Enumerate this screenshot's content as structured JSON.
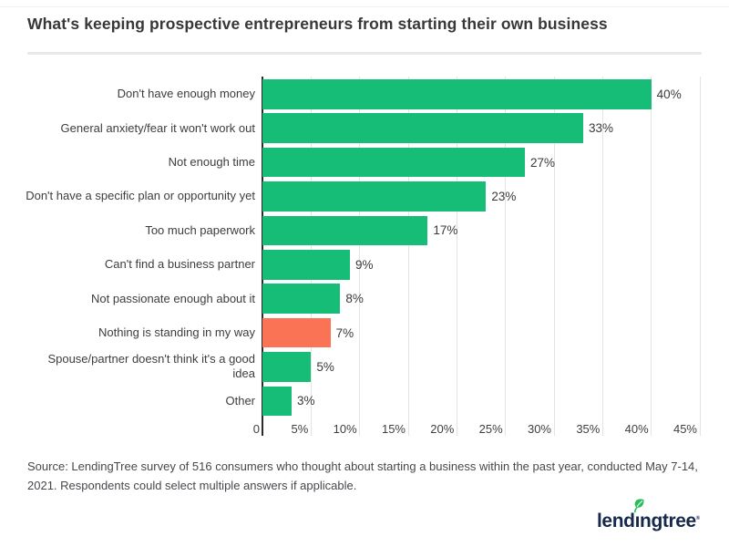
{
  "title": "What's keeping prospective entrepreneurs from starting their own business",
  "chart_data": {
    "type": "bar",
    "orientation": "horizontal",
    "title": "What's keeping prospective entrepreneurs from starting their own business",
    "categories": [
      "Don't have enough money",
      "General anxiety/fear it won't work out",
      "Not enough time",
      "Don't have a specific plan or opportunity yet",
      "Too much paperwork",
      "Can't find a business partner",
      "Not passionate enough about it",
      "Nothing is standing in my way",
      "Spouse/partner doesn't think it's a good\nidea",
      "Other"
    ],
    "values": [
      40,
      33,
      27,
      23,
      17,
      9,
      8,
      7,
      5,
      3
    ],
    "value_labels": [
      "40%",
      "33%",
      "27%",
      "23%",
      "17%",
      "9%",
      "8%",
      "7%",
      "5%",
      "3%"
    ],
    "highlight_index": 7,
    "colors": {
      "bar": "#15bd77",
      "highlight": "#fa7355",
      "axis": "#2b2b2b",
      "gridline": "#e4e4e4"
    },
    "x_axis": {
      "ticks": [
        0,
        5,
        10,
        15,
        20,
        25,
        30,
        35,
        40,
        45
      ],
      "tick_labels": [
        "0",
        "5%",
        "10%",
        "15%",
        "20%",
        "25%",
        "30%",
        "35%",
        "40%",
        "45%"
      ],
      "max": 45
    },
    "grid": true,
    "legend": false,
    "xlabel": "",
    "ylabel": ""
  },
  "source": {
    "text": "Source: LendingTree survey of 516 consumers who thought about starting a business within the past year, conducted May 7-14, 2021. Respondents could select multiple answers if applicable."
  },
  "brand": {
    "name": "lendingtree",
    "word_pre": "lend",
    "word_i": "ı",
    "word_post": "ngtree",
    "trademark": "®",
    "wordmark_color": "#16294b",
    "leaf_color": "#27bf5c"
  }
}
